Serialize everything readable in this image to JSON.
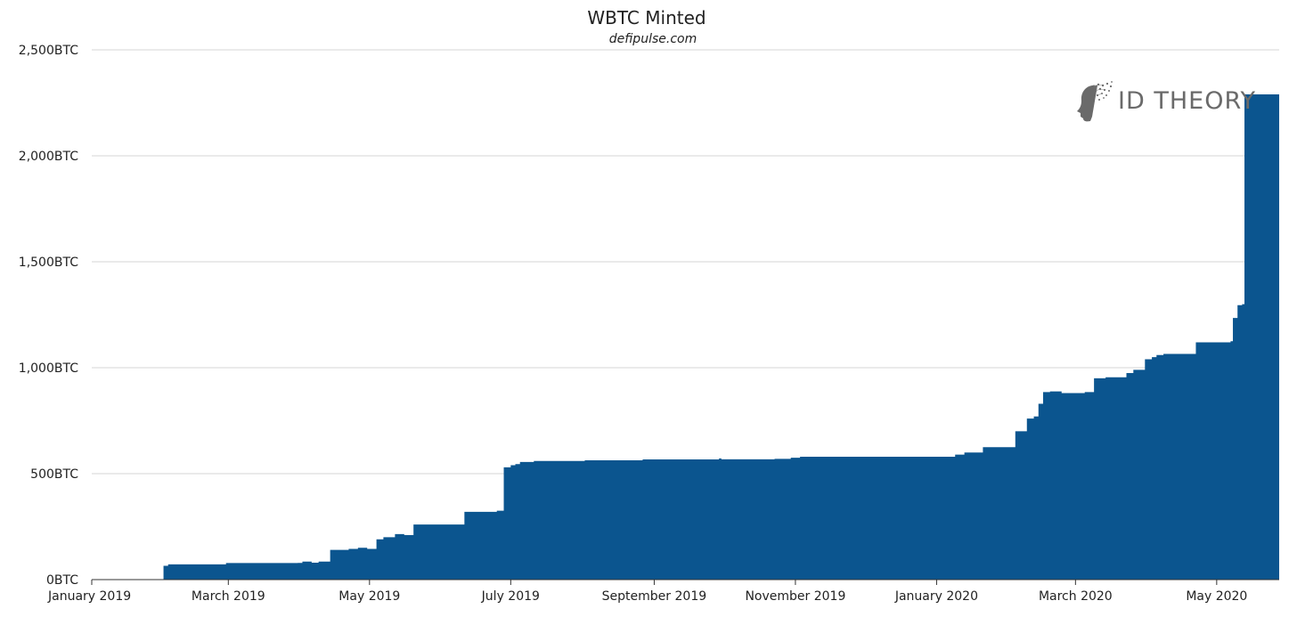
{
  "chart_data": {
    "type": "area",
    "title": "WBTC Minted",
    "subtitle": "defipulse.com",
    "xlabel": "",
    "ylabel": "",
    "y_unit_suffix": "BTC",
    "ylim": [
      0,
      2500
    ],
    "yticks": [
      0,
      500,
      1000,
      1500,
      2000,
      2500
    ],
    "ytick_labels": [
      "0BTC",
      "500BTC",
      "1,000BTC",
      "1,500BTC",
      "2,000BTC",
      "2,500BTC"
    ],
    "xlim": [
      "2019-01-01",
      "2020-05-28"
    ],
    "xticks": [
      "2019-01-01",
      "2019-03-01",
      "2019-05-01",
      "2019-07-01",
      "2019-09-01",
      "2019-11-01",
      "2020-01-01",
      "2020-03-01",
      "2020-05-01"
    ],
    "xtick_labels": [
      "January 2019",
      "March 2019",
      "May 2019",
      "July 2019",
      "September 2019",
      "November 2019",
      "January 2020",
      "March 2020",
      "May 2020"
    ],
    "grid": true,
    "legend": "none",
    "series_color": "#0b558f",
    "series": [
      {
        "x": [
          "2019-01-01",
          "2019-01-31",
          "2019-02-01",
          "2019-02-03",
          "2019-02-28",
          "2019-03-31",
          "2019-04-02",
          "2019-04-06",
          "2019-04-09",
          "2019-04-14",
          "2019-04-22",
          "2019-04-26",
          "2019-04-30",
          "2019-05-04",
          "2019-05-07",
          "2019-05-12",
          "2019-05-16",
          "2019-05-20",
          "2019-06-11",
          "2019-06-25",
          "2019-06-28",
          "2019-07-01",
          "2019-07-03",
          "2019-07-05",
          "2019-07-11",
          "2019-08-02",
          "2019-08-27",
          "2019-09-29",
          "2019-09-30",
          "2019-10-23",
          "2019-10-30",
          "2019-11-03",
          "2020-01-09",
          "2020-01-13",
          "2020-01-21",
          "2020-02-04",
          "2020-02-09",
          "2020-02-12",
          "2020-02-14",
          "2020-02-16",
          "2020-02-19",
          "2020-02-24",
          "2020-03-05",
          "2020-03-09",
          "2020-03-14",
          "2020-03-23",
          "2020-03-26",
          "2020-03-31",
          "2020-04-03",
          "2020-04-05",
          "2020-04-08",
          "2020-04-22",
          "2020-05-07",
          "2020-05-08",
          "2020-05-10",
          "2020-05-12",
          "2020-05-13",
          "2020-05-28"
        ],
        "y": [
          0,
          0,
          65,
          72,
          78,
          79,
          85,
          80,
          85,
          140,
          145,
          150,
          145,
          190,
          200,
          215,
          210,
          260,
          320,
          325,
          530,
          540,
          545,
          555,
          560,
          563,
          567,
          572,
          568,
          570,
          575,
          580,
          590,
          600,
          625,
          700,
          760,
          770,
          830,
          885,
          888,
          880,
          885,
          950,
          955,
          975,
          990,
          1040,
          1050,
          1060,
          1065,
          1120,
          1125,
          1235,
          1295,
          1300,
          2290,
          2290
        ]
      }
    ]
  },
  "logo": {
    "text": "ID THEORY"
  }
}
